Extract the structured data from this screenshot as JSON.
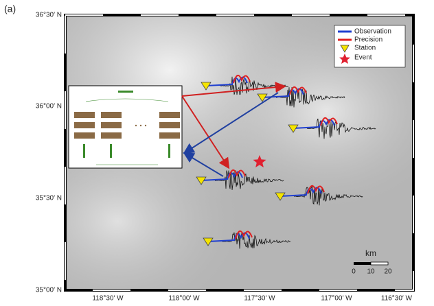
{
  "panel_label": "(a)",
  "lat_labels": [
    "36°30′ N",
    "36°00′ N",
    "35°30′ N",
    "35°00′ N"
  ],
  "lon_labels": [
    "118°30′ W",
    "118°00′ W",
    "117°30′ W",
    "117°00′ W",
    "116°30′ W"
  ],
  "legend": [
    "Observation",
    "Precision",
    "Station",
    "Event"
  ],
  "scale_bar": {
    "unit": "km",
    "ticks": [
      0,
      10,
      20
    ]
  }
}
